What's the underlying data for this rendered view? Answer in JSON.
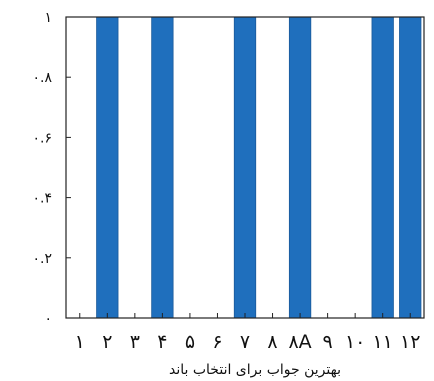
{
  "chart_data": {
    "type": "bar",
    "categories": [
      "۱",
      "۲",
      "۳",
      "۴",
      "۵",
      "۶",
      "۷",
      "۸",
      "۸A",
      "۹",
      "۱۰",
      "۱۱",
      "۱۲"
    ],
    "values": [
      0,
      1,
      0,
      1,
      0,
      0,
      1,
      0,
      1,
      0,
      0,
      1,
      1
    ],
    "title": "",
    "xlabel": "بهترین جواب برای انتخاب باند",
    "ylabel": "",
    "ylim": [
      0,
      1
    ],
    "yticks": [
      0,
      0.2,
      0.4,
      0.6,
      0.8,
      1
    ],
    "ytick_labels": [
      "۰",
      "۰.۲",
      "۰.۴",
      "۰.۶",
      "۰.۸",
      "۱"
    ],
    "bar_color": "#1f6fbd",
    "grid": false,
    "legend": "none"
  }
}
